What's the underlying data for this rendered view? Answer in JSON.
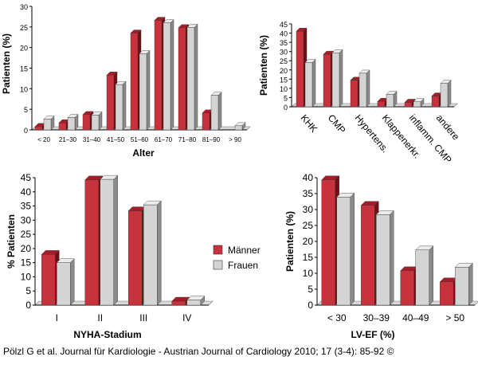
{
  "chart_data": [
    {
      "type": "bar",
      "xlabel": "Alter",
      "ylabel": "Patienten (%)",
      "ylim": [
        0,
        30
      ],
      "yticks": [
        0,
        5,
        10,
        15,
        20,
        25,
        30
      ],
      "categories": [
        "< 20",
        "21–30",
        "31–40",
        "41–50",
        "51–60",
        "61–70",
        "71–80",
        "81–90",
        "> 90"
      ],
      "series": [
        {
          "name": "Männer",
          "values": [
            0.8,
            1.7,
            3.7,
            13.3,
            23.5,
            26.6,
            24.8,
            4.1,
            0
          ]
        },
        {
          "name": "Frauen",
          "values": [
            2.6,
            3.0,
            3.6,
            11.0,
            18.5,
            26.0,
            24.9,
            8.4,
            1.0
          ]
        }
      ],
      "grid": false
    },
    {
      "type": "bar",
      "xlabel": "",
      "ylabel": "Patienten (%)",
      "ylim": [
        0,
        45
      ],
      "yticks": [
        0,
        5,
        10,
        15,
        20,
        25,
        30,
        35,
        40,
        45
      ],
      "categories": [
        "KHK",
        "CMP",
        "Hypertens.",
        "Klappenerkr.",
        "inflamm. CMP",
        "andere"
      ],
      "series": [
        {
          "name": "Männer",
          "values": [
            41.0,
            28.5,
            14.4,
            2.9,
            2.4,
            5.8
          ]
        },
        {
          "name": "Frauen",
          "values": [
            24.0,
            29.3,
            18.2,
            6.7,
            2.7,
            12.7
          ]
        }
      ],
      "grid": false
    },
    {
      "type": "bar",
      "xlabel": "NYHA-Stadium",
      "ylabel": "% Patienten",
      "ylim": [
        0,
        45
      ],
      "yticks": [
        0,
        5,
        10,
        15,
        20,
        25,
        30,
        35,
        40,
        45
      ],
      "categories": [
        "I",
        "II",
        "III",
        "IV"
      ],
      "series": [
        {
          "name": "Männer",
          "values": [
            17.9,
            44.2,
            33.3,
            1.4
          ]
        },
        {
          "name": "Frauen",
          "values": [
            15.0,
            44.4,
            35.4,
            1.8
          ]
        }
      ],
      "grid": false,
      "legend": {
        "position": "right",
        "entries": [
          "Männer",
          "Frauen"
        ]
      }
    },
    {
      "type": "bar",
      "xlabel": "LV-EF (%)",
      "ylabel": "Patienten (%)",
      "ylim": [
        0,
        40
      ],
      "yticks": [
        0,
        5,
        10,
        15,
        20,
        25,
        30,
        35,
        40
      ],
      "categories": [
        "< 30",
        "30–39",
        "40–49",
        "> 50"
      ],
      "series": [
        {
          "name": "Männer",
          "values": [
            39.3,
            31.3,
            10.8,
            7.3
          ]
        },
        {
          "name": "Frauen",
          "values": [
            33.9,
            28.4,
            17.3,
            11.9
          ]
        }
      ],
      "grid": false
    }
  ],
  "colors": {
    "maenner": {
      "front": "#c8323c",
      "side": "#6e1016",
      "top": "#a41e28"
    },
    "frauen": {
      "front": "#d4d4d4",
      "side": "#8a8a8a",
      "top": "#ececec"
    },
    "axis": "#000000",
    "floor": "#d8d8d8"
  },
  "footer": {
    "citation": "Pölzl G et al. Journal für Kardiologie - Austrian Journal of Cardiology 2010; 17 (3-4): 85-92 ©"
  }
}
